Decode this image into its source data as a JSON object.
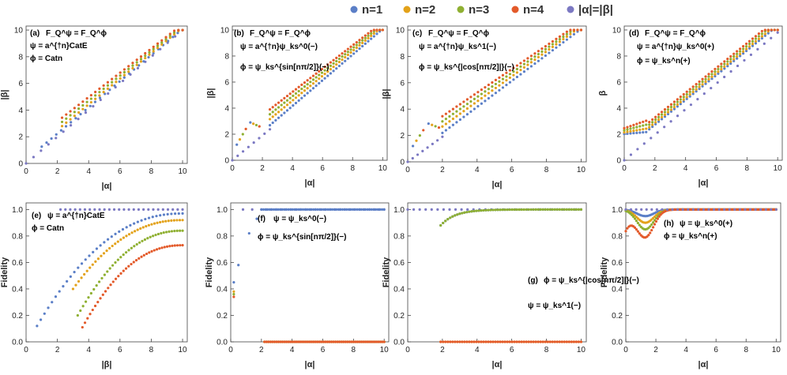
{
  "legend": {
    "items": [
      {
        "label": "n=1",
        "color": "#5b7fc7"
      },
      {
        "label": "n=2",
        "color": "#e3a21a"
      },
      {
        "label": "n=3",
        "color": "#8fb032"
      },
      {
        "label": "n=4",
        "color": "#e35a2a"
      },
      {
        "label": "|α|=|β|",
        "color": "#7b78c2"
      }
    ]
  },
  "chart_data": [
    {
      "id": "a",
      "type": "scatter",
      "panel_label": "(a)",
      "annotations": [
        "F_Q^ψ = F_Q^ϕ",
        "ψ = a^{†n}CatE",
        "ϕ = Catn"
      ],
      "xlabel": "|α|",
      "ylabel": "|β|",
      "xlim": [
        0,
        10.3
      ],
      "ylim": [
        0,
        10.3
      ],
      "xticks": [
        0,
        2,
        4,
        6,
        8,
        10
      ],
      "yticks": [
        0,
        2,
        4,
        6,
        8,
        10
      ],
      "curves": "beta_shift",
      "shift": [
        0.15,
        0.32,
        0.52,
        0.72
      ],
      "shift_start": [
        1.0,
        2.3,
        2.3,
        2.3
      ],
      "n_points": 30
    },
    {
      "id": "b",
      "type": "scatter",
      "panel_label": "(b)",
      "annotations": [
        "F_Q^ψ = F_Q^ϕ",
        "ψ = a^{†n}ψ_ks^0(−)",
        "ϕ = ψ_ks^{sin[nπ/2]}(−)"
      ],
      "xlabel": "|α|",
      "ylabel": "|β|",
      "xlim": [
        0,
        10.3
      ],
      "ylim": [
        0,
        10.3
      ],
      "xticks": [
        0,
        2,
        4,
        6,
        8,
        10
      ],
      "yticks": [
        0,
        2,
        4,
        6,
        8,
        10
      ],
      "curves": "beta_dense",
      "shift": [
        0.1,
        0.35,
        0.55,
        0.75
      ],
      "shift_start": 2.5,
      "n_points": 40
    },
    {
      "id": "c",
      "type": "scatter",
      "panel_label": "(c)",
      "annotations": [
        "F_Q^ψ = F_Q^ϕ",
        "ψ = a^{†n}ψ_ks^1(−)",
        "ϕ = ψ_ks^{|cos[nπ/2]|}(−)"
      ],
      "xlabel": "|α|",
      "ylabel": "|β|",
      "xlim": [
        0,
        10.3
      ],
      "ylim": [
        0,
        10.3
      ],
      "xticks": [
        0,
        2,
        4,
        6,
        8,
        10
      ],
      "yticks": [
        0,
        2,
        4,
        6,
        8,
        10
      ],
      "curves": "beta_dense",
      "shift": [
        0.1,
        0.35,
        0.55,
        0.75
      ],
      "shift_start": 2.0,
      "n_points": 40
    },
    {
      "id": "d",
      "type": "scatter",
      "panel_label": "(d)",
      "annotations": [
        "F_Q^ψ = F_Q^ϕ",
        "ψ = a^{†n}ψ_ks^0(+)",
        "ϕ = ψ_ks^n(+)"
      ],
      "xlabel": "|α|",
      "ylabel": "β",
      "xlim": [
        0,
        10.3
      ],
      "ylim": [
        0,
        10.3
      ],
      "xticks": [
        0,
        2,
        4,
        6,
        8,
        10
      ],
      "yticks": [
        0,
        2,
        4,
        6,
        8,
        10
      ],
      "curves": "beta_plus",
      "shift": [
        0.15,
        0.3,
        0.5,
        0.7
      ],
      "n_points": 50
    },
    {
      "id": "e",
      "type": "scatter",
      "panel_label": "(e)",
      "annotations": [
        "ψ = a^{†n}CatE",
        "ϕ = Catn"
      ],
      "xlabel": "|β|",
      "ylabel": "Fidelity",
      "xlim": [
        0,
        10.3
      ],
      "ylim": [
        0,
        1.05
      ],
      "xticks": [
        0,
        2,
        4,
        6,
        8,
        10
      ],
      "yticks": [
        0.0,
        0.2,
        0.4,
        0.6,
        0.8,
        1.0
      ],
      "curves": "fid_cat",
      "start": [
        0.7,
        3.0,
        3.3,
        3.6
      ],
      "y_at_start": [
        0.12,
        0.4,
        0.2,
        0.11
      ],
      "y_at_10": [
        0.97,
        0.92,
        0.84,
        0.73
      ],
      "n_points": 40
    },
    {
      "id": "f",
      "type": "scatter",
      "panel_label": "(f)",
      "annotations": [
        "ψ = ψ_ks^0(−)",
        "ϕ = ψ_ks^{sin[nπ/2]}(−)"
      ],
      "xlabel": "|α|",
      "ylabel": "Fidelity",
      "xlim": [
        0,
        10.3
      ],
      "ylim": [
        0,
        1.05
      ],
      "xticks": [
        0,
        2,
        4,
        6,
        8,
        10
      ],
      "yticks": [
        0.0,
        0.2,
        0.4,
        0.6,
        0.8,
        1.0
      ],
      "curves": "fid_ks_minus",
      "early": [
        [
          0.2,
          0.45
        ],
        [
          0.5,
          0.58
        ],
        [
          1.2,
          0.82
        ],
        [
          1.7,
          0.93
        ]
      ],
      "zero_from": 2.2,
      "n_points": 60
    },
    {
      "id": "g",
      "type": "scatter",
      "panel_label": "(g)",
      "annotations": [
        "ϕ = ψ_ks^{|cos[nπ/2]|}(−)",
        "ψ = ψ_ks^1(−)"
      ],
      "xlabel": "|α|",
      "ylabel": "Fidelity",
      "xlim": [
        0,
        10.3
      ],
      "ylim": [
        0,
        1.05
      ],
      "xticks": [
        0,
        2,
        4,
        6,
        8,
        10
      ],
      "yticks": [
        0.0,
        0.2,
        0.4,
        0.6,
        0.8,
        1.0
      ],
      "curves": "fid_ks_minus1",
      "zero_from": 1.9,
      "n_points": 60
    },
    {
      "id": "h",
      "type": "scatter",
      "panel_label": "(h)",
      "annotations": [
        "ψ = ψ_ks^0(+)",
        "ϕ = ψ_ks^n(+)"
      ],
      "xlabel": "|α|",
      "ylabel": "Fidelity",
      "xlim": [
        0,
        10.3
      ],
      "ylim": [
        0,
        1.05
      ],
      "xticks": [
        0,
        2,
        4,
        6,
        8,
        10
      ],
      "yticks": [
        0.0,
        0.2,
        0.4,
        0.6,
        0.8,
        1.0
      ],
      "curves": "fid_ks_plus",
      "dip_min": [
        0.95,
        0.9,
        0.85,
        0.8
      ],
      "dip_at": 1.3,
      "n_points": 100
    }
  ]
}
